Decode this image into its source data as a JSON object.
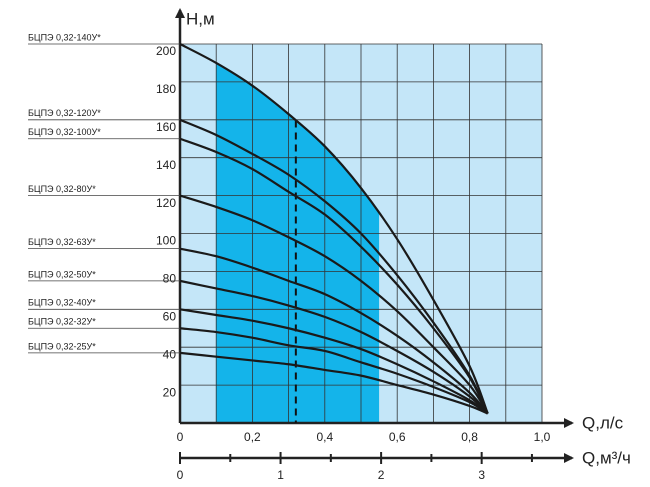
{
  "chart_data": {
    "type": "line",
    "y_label": "H,м",
    "x_label": "Q,л/с",
    "x2_label": "Q,м³/ч",
    "x": [
      0,
      0.1,
      0.2,
      0.3,
      0.4,
      0.5,
      0.6,
      0.7,
      0.8,
      0.85
    ],
    "series": [
      {
        "name": "БЦПЭ 0,32-140У*",
        "color": "#1a1a1a",
        "values": [
          200,
          190,
          178,
          163,
          146,
          124,
          97,
          65,
          30,
          5
        ]
      },
      {
        "name": "БЦПЭ 0,32-120У*",
        "color": "#1a1a1a",
        "values": [
          160,
          152,
          142,
          131,
          117,
          100,
          78,
          53,
          25,
          5
        ]
      },
      {
        "name": "БЦПЭ 0,32-100У*",
        "color": "#1a1a1a",
        "values": [
          150,
          143,
          134,
          122,
          110,
          93,
          73,
          50,
          24,
          5
        ]
      },
      {
        "name": "БЦПЭ 0,32-80У*",
        "color": "#1a1a1a",
        "values": [
          120,
          114,
          107,
          98,
          88,
          75,
          59,
          40,
          20,
          5
        ]
      },
      {
        "name": "БЦПЭ 0,32-63У*",
        "color": "#1a1a1a",
        "values": [
          92,
          88,
          82,
          75,
          68,
          58,
          46,
          32,
          16,
          5
        ]
      },
      {
        "name": "БЦПЭ 0,32-50У*",
        "color": "#1a1a1a",
        "values": [
          75,
          71,
          67,
          62,
          56,
          48,
          38,
          27,
          14,
          5
        ]
      },
      {
        "name": "БЦПЭ 0,32-40У*",
        "color": "#1a1a1a",
        "values": [
          60,
          57,
          54,
          50,
          45,
          39,
          31,
          22,
          12,
          5
        ]
      },
      {
        "name": "БЦПЭ 0,32-32У*",
        "color": "#1a1a1a",
        "values": [
          50,
          48,
          45,
          41,
          38,
          32,
          26,
          19,
          11,
          5
        ]
      },
      {
        "name": "БЦПЭ 0,32-25У*",
        "color": "#1a1a1a",
        "values": [
          37,
          35,
          33,
          31,
          28,
          25,
          20,
          15,
          9,
          5
        ]
      }
    ],
    "xlim": [
      0,
      1.0
    ],
    "xticks": [
      0,
      {
        "value": 0.2,
        "label": "0,2"
      },
      {
        "value": 0.4,
        "label": "0,4"
      },
      {
        "value": 0.6,
        "label": "0,6"
      },
      {
        "value": 0.8,
        "label": "0,8"
      },
      {
        "value": 1.0,
        "label": "1,0"
      }
    ],
    "xminor": [
      0.1,
      0.3,
      0.5,
      0.7,
      0.9
    ],
    "ylim": [
      0,
      200
    ],
    "yticks": [
      20,
      40,
      60,
      80,
      100,
      120,
      140,
      160,
      180,
      200
    ],
    "x2lim": [
      0,
      3.6
    ],
    "x2ticks": [
      0,
      1,
      2,
      3
    ],
    "x2minor": [
      0.5,
      1.5,
      2.5,
      3.5
    ],
    "highlight_x": [
      0.1,
      0.55
    ],
    "marker_x": 0.32,
    "background_color": "#c4e6f8",
    "highlight_color": "#14b4ea",
    "grid": true
  }
}
